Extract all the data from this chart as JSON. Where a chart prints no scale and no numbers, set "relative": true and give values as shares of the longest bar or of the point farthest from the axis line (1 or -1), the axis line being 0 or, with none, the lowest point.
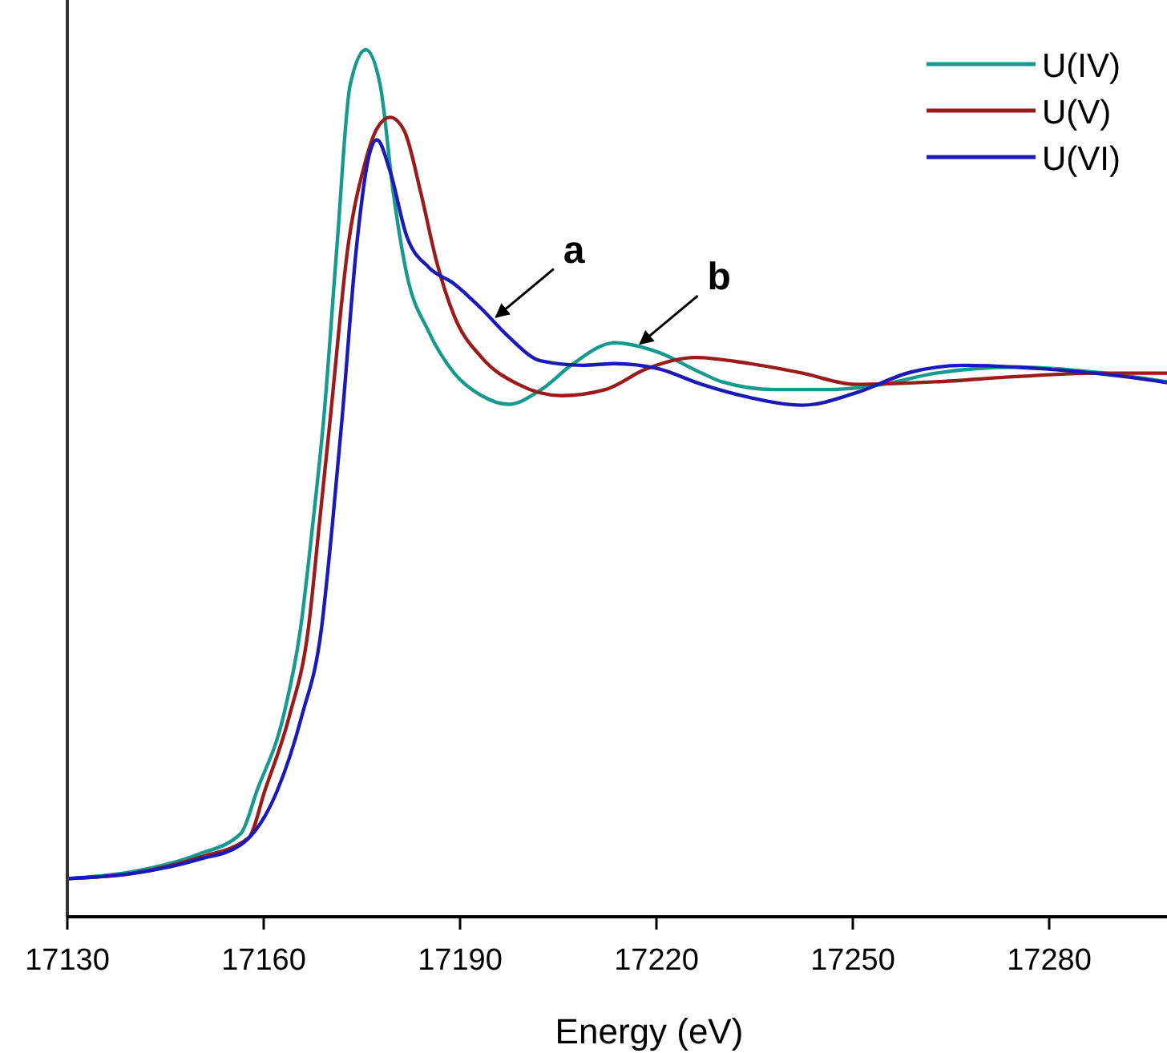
{
  "chart_data": {
    "type": "line",
    "xlabel": "Energy (eV)",
    "relative": true,
    "xlim": [
      17130,
      17298
    ],
    "xticks": [
      17130,
      17160,
      17190,
      17220,
      17250,
      17280
    ],
    "tick_labels": "x",
    "legend": "top right",
    "grid": false,
    "marker": "none",
    "line_style": "solid",
    "annotations": [
      {
        "text": "a",
        "x": 17195,
        "y": 0.688
      },
      {
        "text": "b",
        "x": 17217,
        "y": 0.657
      }
    ],
    "series": [
      {
        "name": "U(IV)",
        "color": "#179a8e",
        "x": [
          17130,
          17140,
          17150,
          17156.5,
          17159,
          17163,
          17165.6,
          17167.5,
          17169.2,
          17171.2,
          17173.2,
          17175.6,
          17177.8,
          17179.8,
          17181.8,
          17185.2,
          17189.1,
          17193.3,
          17197.4,
          17202.4,
          17207.3,
          17213.6,
          17220.3,
          17226.9,
          17230,
          17238,
          17246.5,
          17254.6,
          17262.7,
          17275,
          17287,
          17298
        ],
        "values": [
          0.044,
          0.052,
          0.072,
          0.096,
          0.146,
          0.231,
          0.331,
          0.453,
          0.577,
          0.774,
          0.959,
          1.0,
          0.959,
          0.835,
          0.743,
          0.675,
          0.627,
          0.601,
          0.591,
          0.608,
          0.638,
          0.662,
          0.651,
          0.627,
          0.617,
          0.608,
          0.608,
          0.614,
          0.627,
          0.634,
          0.628,
          0.617
        ]
      },
      {
        "name": "U(V)",
        "color": "#9b1b1b",
        "x": [
          17130,
          17140,
          17150,
          17157.7,
          17160.2,
          17163.9,
          17166.8,
          17168.5,
          17170.2,
          17172.9,
          17175.4,
          17177.3,
          17179.3,
          17181.5,
          17184,
          17186.4,
          17189.1,
          17193.3,
          17198.9,
          17205.5,
          17212.2,
          17218.5,
          17225.9,
          17234.2,
          17242.3,
          17250.4,
          17262.7,
          17275,
          17287,
          17298
        ],
        "values": [
          0.044,
          0.05,
          0.068,
          0.091,
          0.146,
          0.231,
          0.331,
          0.453,
          0.577,
          0.774,
          0.867,
          0.909,
          0.922,
          0.906,
          0.835,
          0.756,
          0.693,
          0.645,
          0.614,
          0.601,
          0.608,
          0.632,
          0.645,
          0.638,
          0.627,
          0.614,
          0.617,
          0.623,
          0.627,
          0.627
        ]
      },
      {
        "name": "U(VI)",
        "color": "#1a1ab8",
        "x": [
          17130,
          17140,
          17150,
          17156.5,
          17162.1,
          17165.8,
          17168.8,
          17170.5,
          17172,
          17174.2,
          17176.1,
          17177.3,
          17179.3,
          17181.8,
          17185.2,
          17189.1,
          17193.3,
          17197.4,
          17202.4,
          17208.7,
          17213.6,
          17220.3,
          17226.9,
          17234.2,
          17242.3,
          17250.4,
          17258.8,
          17266.9,
          17279,
          17291.4,
          17298
        ],
        "values": [
          0.044,
          0.05,
          0.066,
          0.083,
          0.146,
          0.231,
          0.331,
          0.453,
          0.577,
          0.774,
          0.878,
          0.896,
          0.86,
          0.786,
          0.749,
          0.73,
          0.701,
          0.669,
          0.641,
          0.636,
          0.638,
          0.632,
          0.614,
          0.599,
          0.59,
          0.604,
          0.628,
          0.636,
          0.632,
          0.623,
          0.616
        ]
      }
    ]
  }
}
